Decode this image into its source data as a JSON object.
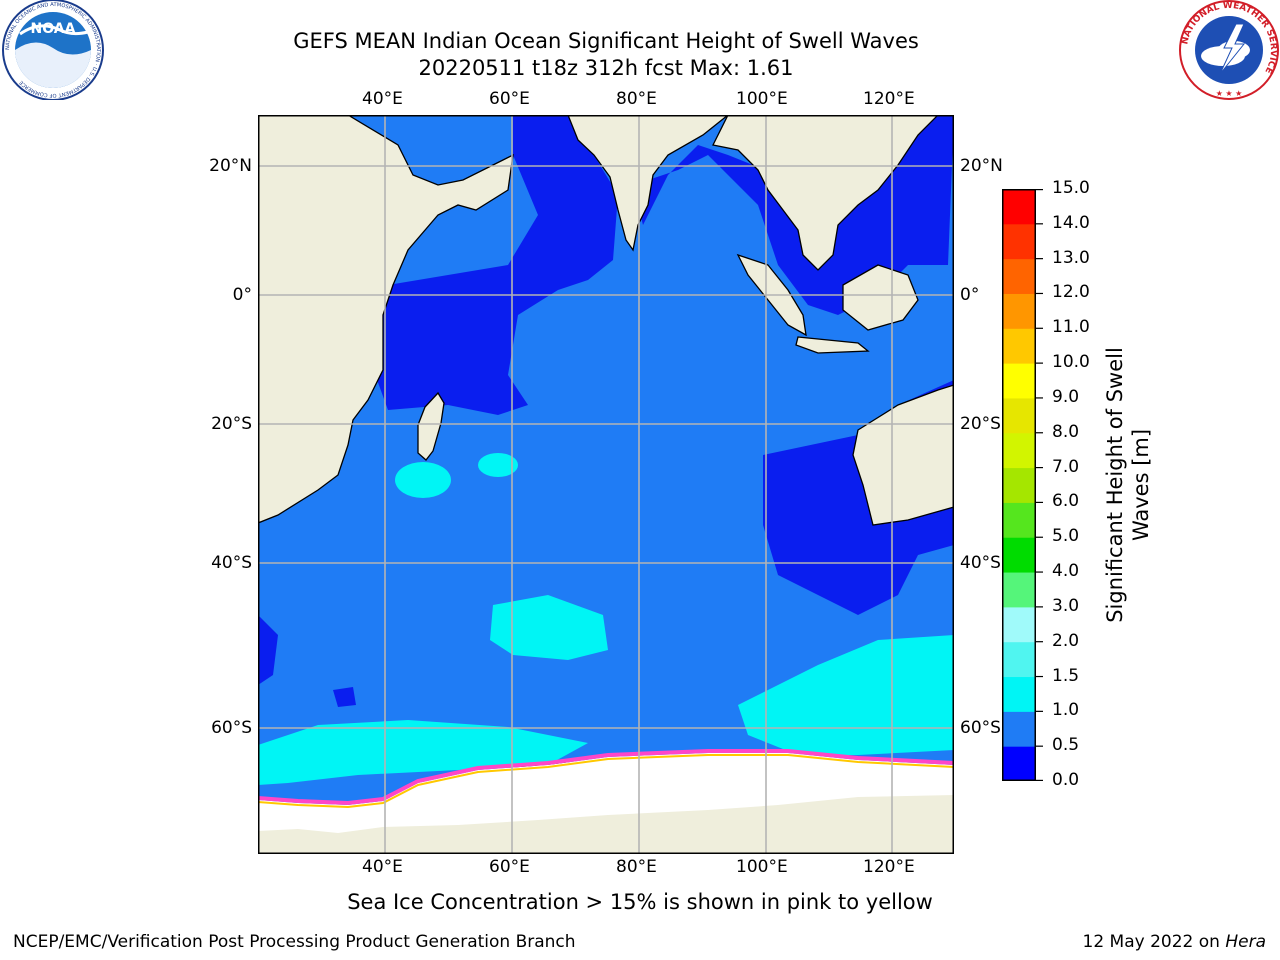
{
  "title": {
    "line1": "GEFS MEAN Indian Ocean Significant Height of Swell Waves",
    "line2": "20220511 t18z 312h fcst   Max: 1.61"
  },
  "axes": {
    "lon_labels": [
      "40°E",
      "60°E",
      "80°E",
      "100°E",
      "120°E"
    ],
    "lat_labels": [
      "20°N",
      "0°",
      "20°S",
      "40°S",
      "60°S"
    ]
  },
  "colorbar": {
    "title_line1": "Significant Height of Swell",
    "title_line2": "Waves [m]",
    "ticks": [
      "0.0",
      "0.5",
      "1.0",
      "1.5",
      "2.0",
      "3.0",
      "4.0",
      "5.0",
      "6.0",
      "7.0",
      "8.0",
      "9.0",
      "10.0",
      "11.0",
      "12.0",
      "13.0",
      "14.0",
      "15.0"
    ],
    "colors": [
      "#0000ff",
      "#1f7cf5",
      "#00f5f5",
      "#50f5f0",
      "#a0fafa",
      "#55f57a",
      "#00dc00",
      "#55e61e",
      "#a5e600",
      "#d2f500",
      "#e6e600",
      "#ffff00",
      "#ffc800",
      "#ff9600",
      "#ff6400",
      "#ff3200",
      "#ff0000"
    ]
  },
  "note": "Sea Ice Concentration > 15% is shown in pink to yellow",
  "footer": {
    "left": "NCEP/EMC/Verification Post Processing Product Generation Branch",
    "date": "12 May 2022 on ",
    "host": "Hera"
  },
  "logos": {
    "noaa_text": "NOAA",
    "noaa_ring": "NATIONAL OCEANIC AND ATMOSPHERIC ADMINISTRATION · U.S. DEPARTMENT OF COMMERCE",
    "nws_ring": "NATIONAL WEATHER SERVICE"
  }
}
